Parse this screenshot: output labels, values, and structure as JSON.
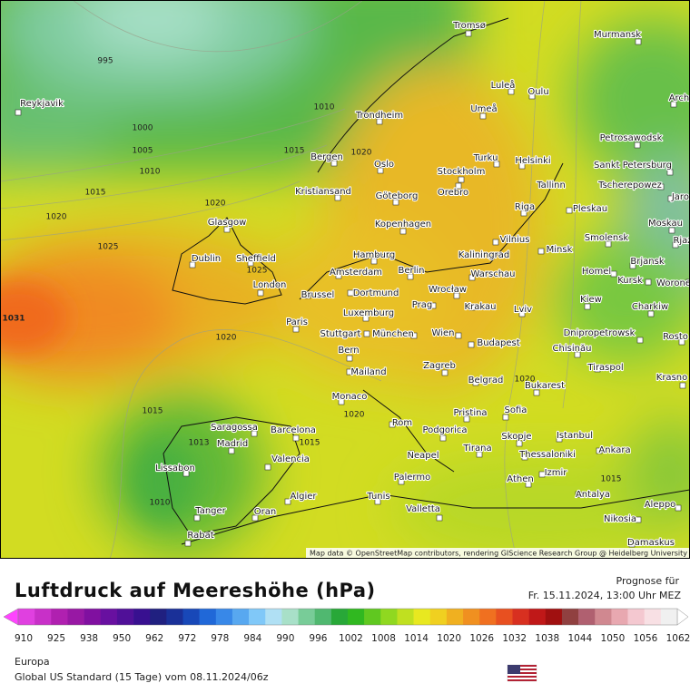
{
  "header": {
    "title": "Luftdruck auf Meereshöhe (hPa)",
    "forecast_label": "Prognose für",
    "forecast_time": "Fr. 15.11.2024, 13:00 Uhr MEZ"
  },
  "map": {
    "cities": [
      "Tromsø",
      "Murmansk",
      "Reykjavik",
      "Luleå",
      "Oulu",
      "Umeå",
      "Trondheim",
      "Arch",
      "Petrosawodsk",
      "Bergen",
      "Oslo",
      "Turku",
      "Helsinki",
      "Sankt Petersburg",
      "Stockholm",
      "Tallinn",
      "Tscherepowez",
      "Kristiansand",
      "Göteborg",
      "Orebro",
      "Jaros",
      "Riga",
      "Pleskau",
      "Glasgow",
      "Kopenhagen",
      "Moskau",
      "Vilnius",
      "Smolensk",
      "Rjaz",
      "Hamburg",
      "Kaliningrad",
      "Minsk",
      "Dublin",
      "Sheffield",
      "Brjansk",
      "Amsterdam",
      "Berlin",
      "Warschau",
      "Homel",
      "Kursk",
      "Worone",
      "London",
      "Brussel",
      "Dortmund",
      "Wrocław",
      "Krakau",
      "Lviv",
      "Kiew",
      "Charkiw",
      "Paris",
      "Luxemburg",
      "Prag",
      "Stuttgart",
      "München",
      "Wien",
      "Dnipropetrowsk",
      "Rosto",
      "Bern",
      "Budapest",
      "Chisinău",
      "Zagreb",
      "Tiraspol",
      "Mailand",
      "Belgrad",
      "Bukarest",
      "Krasno",
      "Monaco",
      "Pristina",
      "Sofia",
      "Rom",
      "Saragossa",
      "Barcelona",
      "Podgorica",
      "Istanbul",
      "Skopje",
      "Madrid",
      "Tirana",
      "Thessaloniki",
      "Ankara",
      "Neapel",
      "Valencia",
      "Lissabon",
      "Izmir",
      "Palermo",
      "Athen",
      "Algier",
      "Tunis",
      "Antalya",
      "Aleppo",
      "Valletta",
      "Tanger",
      "Oran",
      "Nikosia",
      "Rabat",
      "Damaskus"
    ],
    "isobar_labels": [
      "995",
      "1010",
      "1000",
      "1005",
      "1010",
      "1015",
      "1020",
      "1015",
      "1020",
      "1020",
      "1025",
      "1025",
      "1031",
      "1020",
      "1015",
      "1020",
      "1013",
      "1015",
      "1010",
      "1020",
      "1015"
    ],
    "attribution": "Map data © OpenStreetMap contributors, rendering GIScience Research Group @ Heidelberg University"
  },
  "colorbar": {
    "colors": [
      "#e040e0",
      "#c830c8",
      "#b020b0",
      "#9818a4",
      "#8010a0",
      "#6810a0",
      "#501098",
      "#381090",
      "#202080",
      "#1a3098",
      "#1848b8",
      "#2068d8",
      "#3888e8",
      "#58a8f0",
      "#80c8f8",
      "#b0e0f4",
      "#a8e0c8",
      "#78cc98",
      "#50b870",
      "#28a838",
      "#30b820",
      "#60c820",
      "#90d820",
      "#c0e020",
      "#e8e820",
      "#f0d020",
      "#f0b020",
      "#f09020",
      "#f07020",
      "#e85020",
      "#d83020",
      "#c01818",
      "#a01010",
      "#904040",
      "#b06070",
      "#d08890",
      "#e8a8b0",
      "#f4c8d0",
      "#f8e0e4",
      "#f0f0f0"
    ],
    "ticks": [
      910,
      925,
      938,
      950,
      962,
      972,
      978,
      984,
      990,
      996,
      1002,
      1008,
      1014,
      1020,
      1026,
      1032,
      1038,
      1044,
      1050,
      1056,
      1062
    ]
  },
  "footer": {
    "region": "Europa",
    "model": "Global US Standard (15 Tage)  vom  08.11.2024/06z"
  }
}
